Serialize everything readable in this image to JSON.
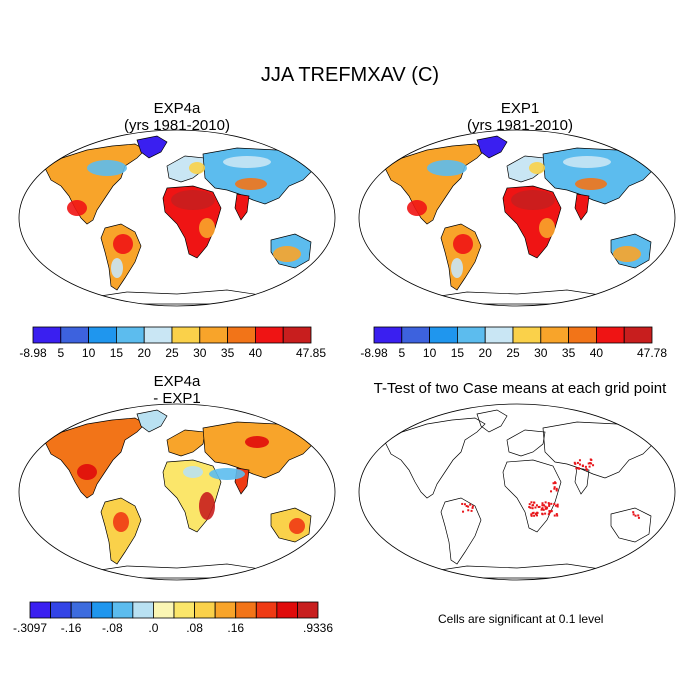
{
  "main_title": "JJA TREFMXAV (C)",
  "panels": [
    {
      "id": "p1",
      "title_line1": "EXP4a",
      "title_line2": "(yrs 1981-2010)"
    },
    {
      "id": "p2",
      "title_line1": "EXP1",
      "title_line2": "(yrs 1981-2010)"
    },
    {
      "id": "p3",
      "title_line1": "EXP4a",
      "title_line2": "- EXP1"
    },
    {
      "id": "p4",
      "title_line1": "T-Test of two Case means at each grid point",
      "title_line2": ""
    }
  ],
  "note": "Cells are significant at 0.1 level",
  "chart_data": [
    {
      "type": "heatmap",
      "title": "EXP4a (yrs 1981-2010)",
      "colorbar": {
        "colors": [
          "#3a1ff0",
          "#3d62de",
          "#1f96ee",
          "#5cbcee",
          "#c9e6f4",
          "#fad14a",
          "#f8a42a",
          "#f27418",
          "#ef1414",
          "#c81e1e"
        ],
        "labels": [
          "-8.98",
          "5",
          "10",
          "15",
          "20",
          "25",
          "30",
          "35",
          "40",
          "47.85"
        ]
      }
    },
    {
      "type": "heatmap",
      "title": "EXP1 (yrs 1981-2010)",
      "colorbar": {
        "colors": [
          "#3a1ff0",
          "#3d62de",
          "#1f96ee",
          "#5cbcee",
          "#c9e6f4",
          "#fad14a",
          "#f8a42a",
          "#f27418",
          "#ef1414",
          "#c81e1e"
        ],
        "labels": [
          "-8.98",
          "5",
          "10",
          "15",
          "20",
          "25",
          "30",
          "35",
          "40",
          "47.78"
        ]
      }
    },
    {
      "type": "heatmap",
      "title": "EXP4a - EXP1",
      "colorbar": {
        "colors": [
          "#3a1ff0",
          "#3344e6",
          "#3d6cde",
          "#1f96ee",
          "#5cbcee",
          "#b9e1f2",
          "#fbf6b4",
          "#fbe66a",
          "#fad14a",
          "#f8a42a",
          "#f27418",
          "#ef3a14",
          "#e00b0b",
          "#c81e1e"
        ],
        "labels": [
          "-.3097",
          "-.16",
          "-.08",
          ".0",
          ".08",
          ".16",
          ".9336"
        ],
        "label_slots": [
          0,
          2,
          4,
          6,
          8,
          10,
          14
        ]
      }
    },
    {
      "type": "heatmap",
      "title": "T-Test of two Case means at each grid point",
      "significance_color": "#e8161b"
    }
  ],
  "colors": {
    "cold": "#3a1ff0",
    "hot": "#c81e1e",
    "outline": "#000000"
  }
}
